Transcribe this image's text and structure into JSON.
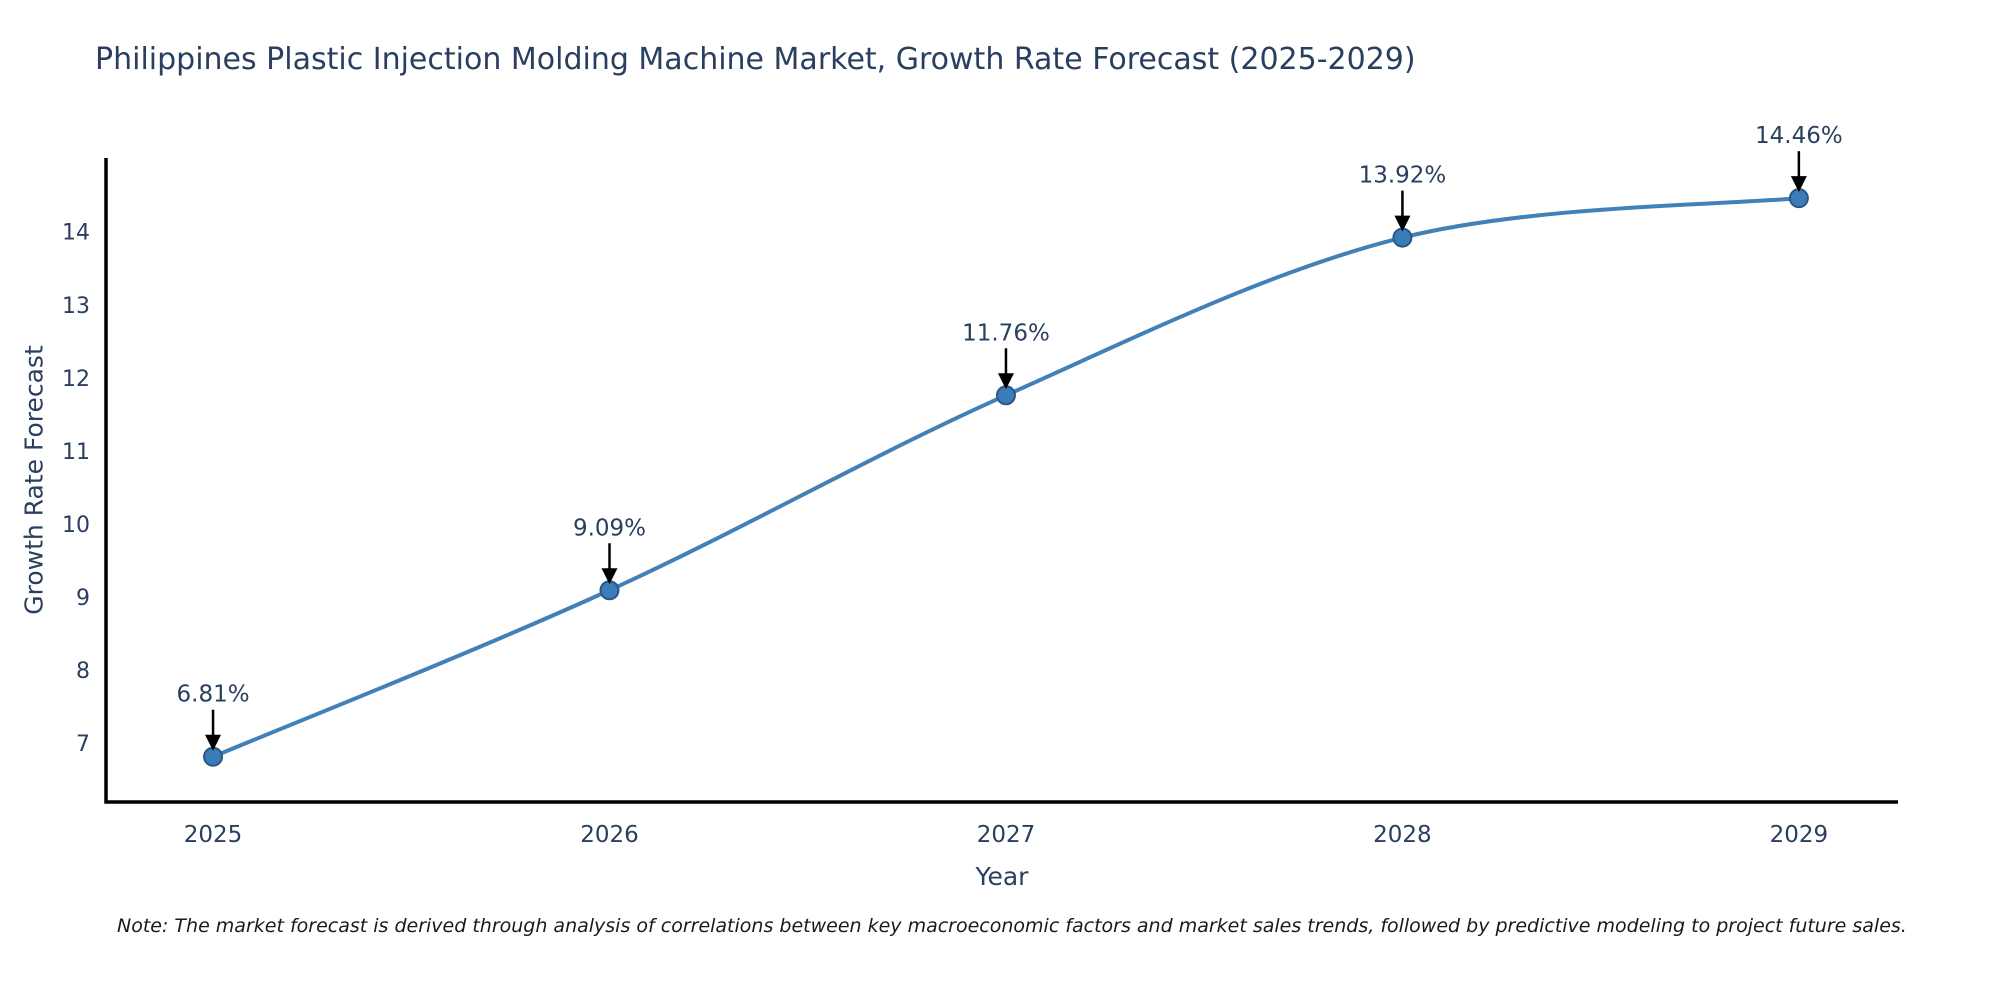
{
  "note": "Note: The market forecast is derived through analysis of correlations between key macroeconomic factors and market sales trends, followed by predictive modeling to project future sales.",
  "chart_data": {
    "type": "line",
    "title": "Philippines Plastic Injection Molding Machine Market, Growth Rate Forecast (2025-2029)",
    "xlabel": "Year",
    "ylabel": "Growth Rate Forecast",
    "x": [
      2025,
      2026,
      2027,
      2028,
      2029
    ],
    "series": [
      {
        "name": "Growth Rate Forecast",
        "values": [
          6.81,
          9.09,
          11.76,
          13.92,
          14.46
        ],
        "point_labels": [
          "6.81%",
          "9.09%",
          "11.76%",
          "13.92%",
          "14.46%"
        ]
      }
    ],
    "line_shape": "spline",
    "grid": false,
    "legend_position": "none",
    "xlim": [
      2024.73,
      2029.25
    ],
    "ylim": [
      6.19,
      15.01
    ],
    "xticks": [
      2025,
      2026,
      2027,
      2028,
      2029
    ],
    "yticks": [
      7,
      8,
      9,
      10,
      11,
      12,
      13,
      14
    ],
    "colors": {
      "line": "#4181b8",
      "marker_fill": "#3a7cb8",
      "marker_edge": "#2a5783",
      "axis_line": "#000000",
      "text": "#2a3f5f",
      "annotation_text": "#2a3f5f",
      "arrow": "#000000",
      "note_text": "#1a1a1a",
      "background": "#ffffff"
    }
  }
}
